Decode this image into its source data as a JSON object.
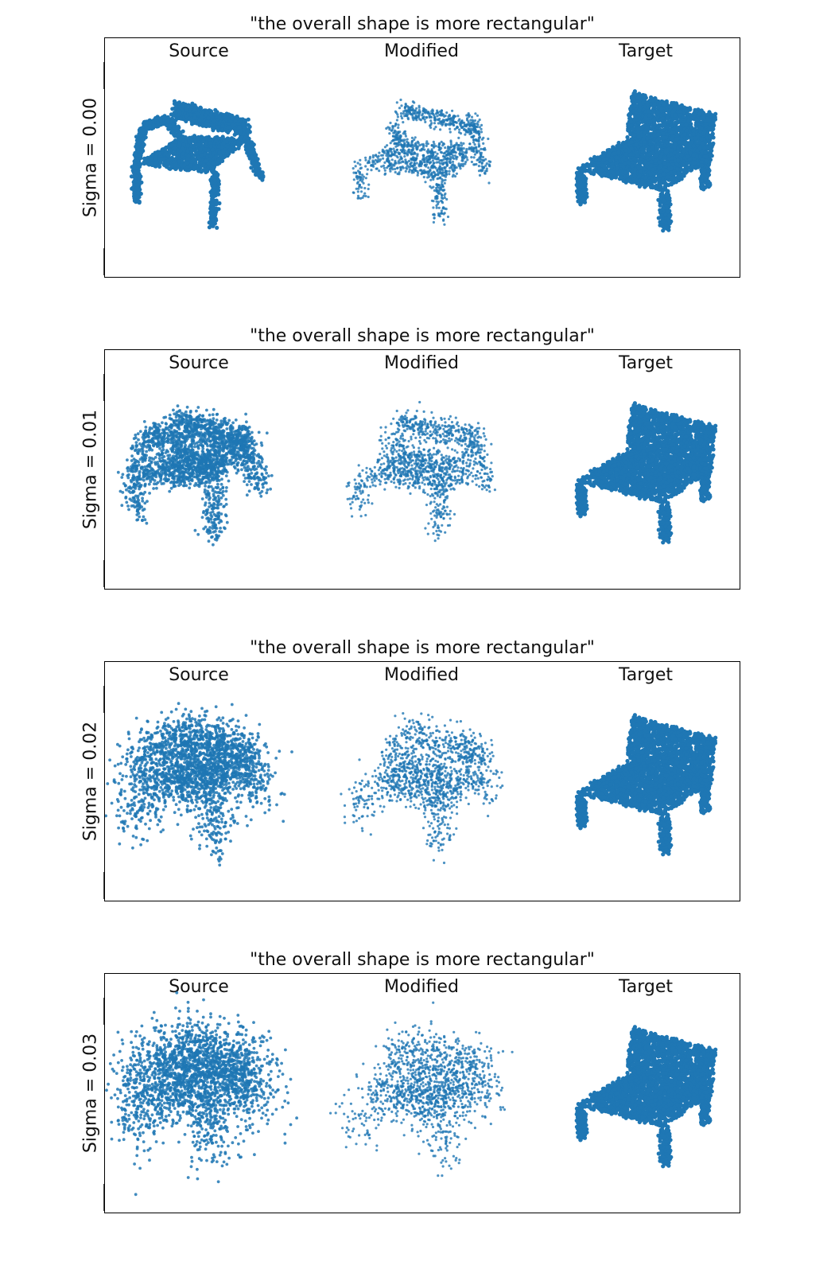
{
  "panels": [
    {
      "title": "\"the overall shape is more rectangular\"",
      "ylabel": "Sigma = 0.00",
      "sigma": 0.0
    },
    {
      "title": "\"the overall shape is more rectangular\"",
      "ylabel": "Sigma = 0.01",
      "sigma": 0.01
    },
    {
      "title": "\"the overall shape is more rectangular\"",
      "ylabel": "Sigma = 0.02",
      "sigma": 0.02
    },
    {
      "title": "\"the overall shape is more rectangular\"",
      "ylabel": "Sigma = 0.03",
      "sigma": 0.03
    }
  ],
  "columns": [
    "Source",
    "Modified",
    "Target"
  ],
  "colors": {
    "points": "#1f77b4",
    "frame": "#000000"
  },
  "objects": {
    "source": "chair-point-cloud",
    "modified": "chair-point-cloud",
    "target": "chair-point-cloud"
  }
}
